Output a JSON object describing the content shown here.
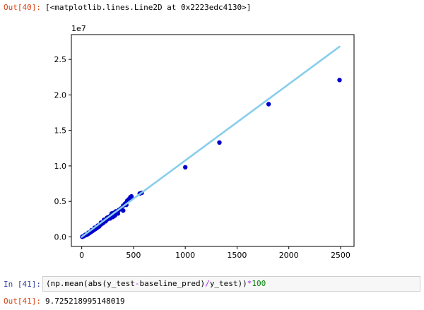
{
  "cells": {
    "out40_prompt": "Out[40]:",
    "out40_text": "[<matplotlib.lines.Line2D at 0x2223edc4130>]",
    "in41_prompt": "In [41]:",
    "in41_code": {
      "part1": "(np.mean(abs(y_test",
      "op1": "-",
      "part2": "baseline_pred)",
      "op2": "/",
      "part3": "y_test))",
      "op3": "*",
      "num": "100"
    },
    "out41_prompt": "Out[41]:",
    "out41_text": "9.725218995148019"
  },
  "chart_data": {
    "type": "scatter",
    "y_offset_label": "1e7",
    "xlim": [
      -100,
      2630
    ],
    "ylim": [
      -0.135,
      2.85
    ],
    "x_ticks": [
      "0",
      "500",
      "1000",
      "1500",
      "2000",
      "2500"
    ],
    "y_ticks": [
      "0.0",
      "0.5",
      "1.0",
      "1.5",
      "2.0",
      "2.5"
    ],
    "scatter_color": "#0000cc",
    "line_color": "#87ceeb",
    "points": [
      [
        1000,
        0.98
      ],
      [
        1330,
        1.33
      ],
      [
        1805,
        1.87
      ],
      [
        2490,
        2.21
      ],
      [
        580,
        0.62
      ],
      [
        560,
        0.61
      ],
      [
        480,
        0.57
      ],
      [
        470,
        0.56
      ],
      [
        455,
        0.53
      ],
      [
        440,
        0.51
      ],
      [
        420,
        0.47
      ],
      [
        400,
        0.44
      ],
      [
        380,
        0.4
      ],
      [
        360,
        0.38
      ],
      [
        340,
        0.35
      ],
      [
        330,
        0.36
      ],
      [
        310,
        0.34
      ],
      [
        300,
        0.31
      ],
      [
        290,
        0.33
      ],
      [
        280,
        0.3
      ],
      [
        270,
        0.27
      ],
      [
        260,
        0.28
      ],
      [
        250,
        0.25
      ],
      [
        240,
        0.24
      ],
      [
        230,
        0.22
      ],
      [
        220,
        0.23
      ],
      [
        210,
        0.2
      ],
      [
        200,
        0.19
      ],
      [
        190,
        0.18
      ],
      [
        180,
        0.17
      ],
      [
        170,
        0.15
      ],
      [
        160,
        0.14
      ],
      [
        150,
        0.13
      ],
      [
        140,
        0.12
      ],
      [
        130,
        0.11
      ],
      [
        120,
        0.1
      ],
      [
        110,
        0.09
      ],
      [
        100,
        0.08
      ],
      [
        90,
        0.07
      ],
      [
        80,
        0.06
      ],
      [
        70,
        0.05
      ],
      [
        60,
        0.04
      ],
      [
        50,
        0.03
      ],
      [
        40,
        0.025
      ],
      [
        30,
        0.02
      ],
      [
        20,
        0.01
      ],
      [
        10,
        0.005
      ],
      [
        5,
        0.0
      ],
      [
        350,
        0.33
      ],
      [
        320,
        0.3
      ],
      [
        275,
        0.26
      ],
      [
        245,
        0.27
      ],
      [
        215,
        0.24
      ],
      [
        185,
        0.2
      ],
      [
        155,
        0.16
      ],
      [
        125,
        0.13
      ],
      [
        95,
        0.095
      ],
      [
        65,
        0.06
      ],
      [
        35,
        0.03
      ],
      [
        400,
        0.37
      ],
      [
        430,
        0.45
      ],
      [
        300,
        0.28
      ]
    ],
    "line": [
      [
        0,
        0.0
      ],
      [
        2490,
        2.68
      ]
    ]
  }
}
